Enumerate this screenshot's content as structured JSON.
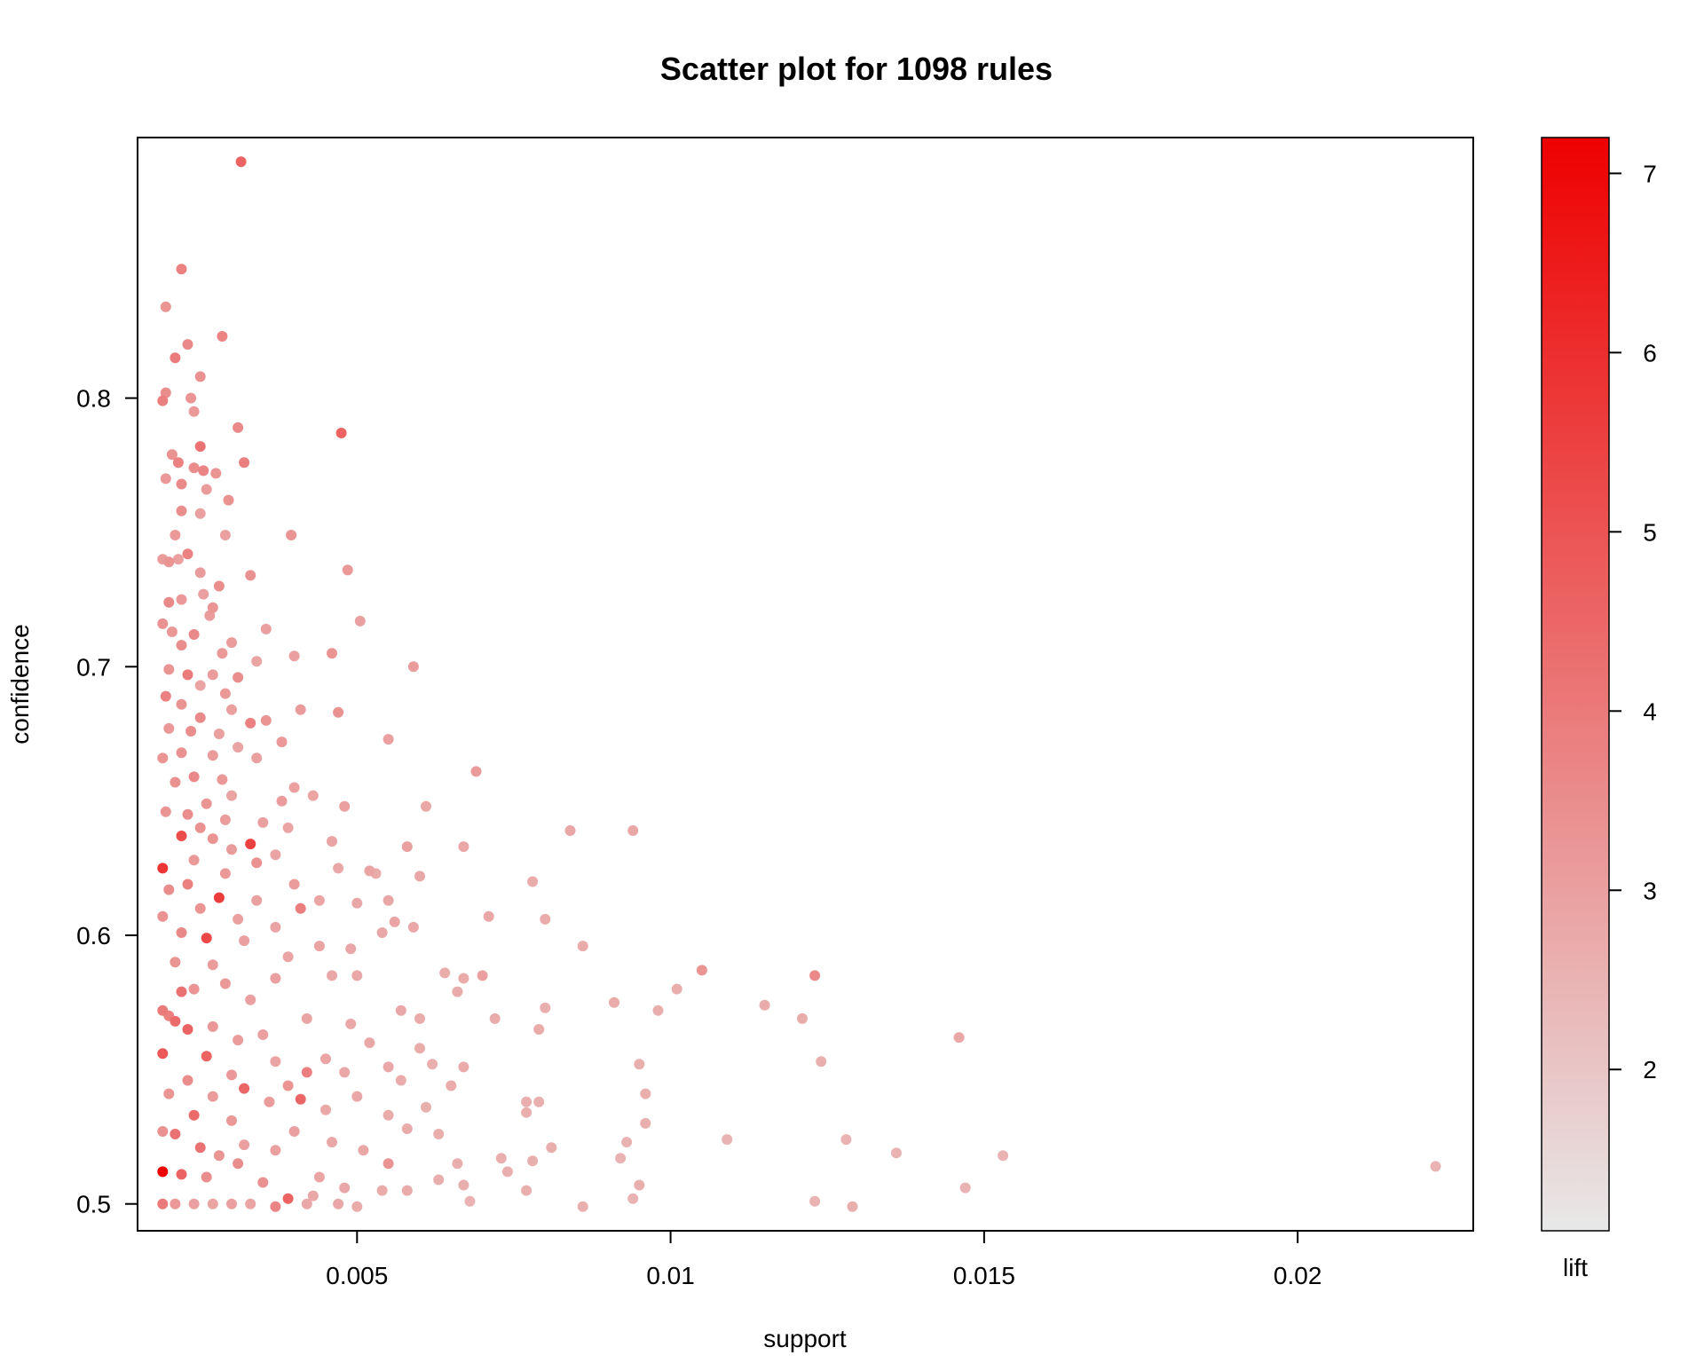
{
  "chart_data": {
    "type": "scatter",
    "title": "Scatter plot for 1098 rules",
    "xlabel": "support",
    "ylabel": "confidence",
    "xlim": [
      0.0015,
      0.0228
    ],
    "ylim": [
      0.49,
      0.897
    ],
    "x_ticks": [
      {
        "value": 0.005,
        "label": "0.005"
      },
      {
        "value": 0.01,
        "label": "0.01"
      },
      {
        "value": 0.015,
        "label": "0.015"
      },
      {
        "value": 0.02,
        "label": "0.02"
      }
    ],
    "y_ticks": [
      {
        "value": 0.5,
        "label": "0.5"
      },
      {
        "value": 0.6,
        "label": "0.6"
      },
      {
        "value": 0.7,
        "label": "0.7"
      },
      {
        "value": 0.8,
        "label": "0.8"
      }
    ],
    "colorbar": {
      "label": "lift",
      "range": [
        1.1,
        7.2
      ],
      "color_low": "#e8e8e8",
      "color_high": "#ee0000",
      "ticks": [
        {
          "value": 2,
          "label": "2"
        },
        {
          "value": 3,
          "label": "3"
        },
        {
          "value": 4,
          "label": "4"
        },
        {
          "value": 5,
          "label": "5"
        },
        {
          "value": 6,
          "label": "6"
        },
        {
          "value": 7,
          "label": "7"
        }
      ]
    },
    "grid": false,
    "points": [
      [
        0.00315,
        0.888,
        4.6
      ],
      [
        0.0022,
        0.848,
        3.8
      ],
      [
        0.00195,
        0.834,
        3.3
      ],
      [
        0.00285,
        0.823,
        3.7
      ],
      [
        0.0023,
        0.82,
        3.6
      ],
      [
        0.0021,
        0.815,
        4.0
      ],
      [
        0.0025,
        0.808,
        3.4
      ],
      [
        0.00195,
        0.802,
        3.5
      ],
      [
        0.0019,
        0.799,
        3.9
      ],
      [
        0.00235,
        0.8,
        3.3
      ],
      [
        0.0024,
        0.795,
        3.2
      ],
      [
        0.0031,
        0.789,
        3.6
      ],
      [
        0.00475,
        0.787,
        4.6
      ],
      [
        0.0025,
        0.782,
        4.2
      ],
      [
        0.00205,
        0.779,
        3.4
      ],
      [
        0.00215,
        0.776,
        3.8
      ],
      [
        0.0032,
        0.776,
        3.9
      ],
      [
        0.0024,
        0.774,
        3.5
      ],
      [
        0.00275,
        0.772,
        3.3
      ],
      [
        0.00195,
        0.77,
        3.2
      ],
      [
        0.00255,
        0.773,
        3.7
      ],
      [
        0.0022,
        0.768,
        3.6
      ],
      [
        0.0026,
        0.766,
        3.1
      ],
      [
        0.00295,
        0.762,
        3.4
      ],
      [
        0.0022,
        0.758,
        3.5
      ],
      [
        0.0025,
        0.757,
        3.0
      ],
      [
        0.0021,
        0.749,
        3.2
      ],
      [
        0.00395,
        0.749,
        3.3
      ],
      [
        0.0029,
        0.749,
        3.0
      ],
      [
        0.0023,
        0.742,
        3.8
      ],
      [
        0.0019,
        0.74,
        3.1
      ],
      [
        0.00215,
        0.74,
        3.0
      ],
      [
        0.002,
        0.739,
        3.3
      ],
      [
        0.00485,
        0.736,
        3.2
      ],
      [
        0.0033,
        0.734,
        3.4
      ],
      [
        0.0025,
        0.735,
        3.1
      ],
      [
        0.0028,
        0.73,
        3.5
      ],
      [
        0.00255,
        0.727,
        3.0
      ],
      [
        0.0022,
        0.725,
        3.2
      ],
      [
        0.002,
        0.724,
        3.6
      ],
      [
        0.0027,
        0.722,
        3.3
      ],
      [
        0.00265,
        0.719,
        3.1
      ],
      [
        0.00505,
        0.717,
        3.0
      ],
      [
        0.0019,
        0.716,
        3.4
      ],
      [
        0.00205,
        0.713,
        3.2
      ],
      [
        0.00355,
        0.714,
        3.0
      ],
      [
        0.0024,
        0.712,
        3.6
      ],
      [
        0.003,
        0.709,
        3.1
      ],
      [
        0.0022,
        0.708,
        3.5
      ],
      [
        0.00285,
        0.705,
        3.2
      ],
      [
        0.004,
        0.704,
        3.0
      ],
      [
        0.0046,
        0.705,
        3.3
      ],
      [
        0.0034,
        0.702,
        2.9
      ],
      [
        0.0059,
        0.7,
        3.1
      ],
      [
        0.002,
        0.699,
        3.3
      ],
      [
        0.0023,
        0.697,
        4.0
      ],
      [
        0.0027,
        0.697,
        3.1
      ],
      [
        0.0031,
        0.696,
        3.5
      ],
      [
        0.0025,
        0.693,
        2.9
      ],
      [
        0.0029,
        0.69,
        3.2
      ],
      [
        0.00195,
        0.689,
        3.8
      ],
      [
        0.0022,
        0.686,
        3.3
      ],
      [
        0.003,
        0.684,
        3.0
      ],
      [
        0.0041,
        0.684,
        3.1
      ],
      [
        0.0047,
        0.683,
        3.4
      ],
      [
        0.0025,
        0.681,
        3.6
      ],
      [
        0.00355,
        0.68,
        3.3
      ],
      [
        0.0033,
        0.679,
        3.8
      ],
      [
        0.002,
        0.677,
        3.2
      ],
      [
        0.00235,
        0.676,
        3.5
      ],
      [
        0.0028,
        0.675,
        3.0
      ],
      [
        0.0038,
        0.672,
        3.2
      ],
      [
        0.0055,
        0.673,
        3.0
      ],
      [
        0.0031,
        0.67,
        2.9
      ],
      [
        0.0022,
        0.668,
        3.4
      ],
      [
        0.0027,
        0.667,
        3.1
      ],
      [
        0.0019,
        0.666,
        3.3
      ],
      [
        0.0034,
        0.666,
        3.0
      ],
      [
        0.0069,
        0.661,
        3.1
      ],
      [
        0.0024,
        0.659,
        3.6
      ],
      [
        0.00285,
        0.658,
        3.2
      ],
      [
        0.0021,
        0.657,
        3.4
      ],
      [
        0.004,
        0.655,
        3.0
      ],
      [
        0.003,
        0.652,
        2.9
      ],
      [
        0.0043,
        0.652,
        2.9
      ],
      [
        0.0026,
        0.649,
        3.3
      ],
      [
        0.0038,
        0.65,
        3.1
      ],
      [
        0.00195,
        0.646,
        3.3
      ],
      [
        0.0023,
        0.645,
        3.5
      ],
      [
        0.0048,
        0.648,
        3.0
      ],
      [
        0.0061,
        0.648,
        2.8
      ],
      [
        0.0029,
        0.643,
        3.1
      ],
      [
        0.0035,
        0.642,
        3.0
      ],
      [
        0.0025,
        0.64,
        3.4
      ],
      [
        0.0039,
        0.64,
        2.9
      ],
      [
        0.0084,
        0.639,
        2.8
      ],
      [
        0.0094,
        0.639,
        2.8
      ],
      [
        0.0022,
        0.637,
        5.2
      ],
      [
        0.0033,
        0.634,
        5.5
      ],
      [
        0.0027,
        0.636,
        3.3
      ],
      [
        0.003,
        0.632,
        3.1
      ],
      [
        0.0046,
        0.635,
        2.9
      ],
      [
        0.0058,
        0.633,
        3.0
      ],
      [
        0.0067,
        0.633,
        2.8
      ],
      [
        0.0037,
        0.63,
        2.9
      ],
      [
        0.0024,
        0.628,
        3.2
      ],
      [
        0.0034,
        0.627,
        3.4
      ],
      [
        0.0019,
        0.625,
        5.8
      ],
      [
        0.0047,
        0.625,
        2.8
      ],
      [
        0.0052,
        0.624,
        2.9
      ],
      [
        0.0053,
        0.623,
        2.7
      ],
      [
        0.006,
        0.622,
        2.8
      ],
      [
        0.0029,
        0.623,
        3.2
      ],
      [
        0.0078,
        0.62,
        2.7
      ],
      [
        0.0023,
        0.619,
        3.8
      ],
      [
        0.004,
        0.619,
        3.1
      ],
      [
        0.002,
        0.617,
        3.5
      ],
      [
        0.0028,
        0.614,
        5.6
      ],
      [
        0.0034,
        0.613,
        3.0
      ],
      [
        0.0044,
        0.613,
        2.9
      ],
      [
        0.005,
        0.612,
        2.8
      ],
      [
        0.0055,
        0.613,
        2.8
      ],
      [
        0.0041,
        0.61,
        3.9
      ],
      [
        0.0025,
        0.61,
        3.3
      ],
      [
        0.0019,
        0.607,
        3.4
      ],
      [
        0.0031,
        0.606,
        3.0
      ],
      [
        0.0071,
        0.607,
        2.8
      ],
      [
        0.008,
        0.606,
        2.7
      ],
      [
        0.0056,
        0.605,
        2.9
      ],
      [
        0.0059,
        0.603,
        2.8
      ],
      [
        0.0037,
        0.603,
        2.9
      ],
      [
        0.0054,
        0.601,
        2.8
      ],
      [
        0.0022,
        0.601,
        3.6
      ],
      [
        0.0026,
        0.599,
        5.3
      ],
      [
        0.0032,
        0.598,
        3.0
      ],
      [
        0.0044,
        0.596,
        2.9
      ],
      [
        0.0049,
        0.595,
        2.8
      ],
      [
        0.0086,
        0.596,
        2.7
      ],
      [
        0.0039,
        0.592,
        2.9
      ],
      [
        0.0021,
        0.59,
        3.3
      ],
      [
        0.0027,
        0.589,
        3.1
      ],
      [
        0.0105,
        0.587,
        3.3
      ],
      [
        0.0064,
        0.586,
        2.7
      ],
      [
        0.0046,
        0.585,
        2.8
      ],
      [
        0.007,
        0.585,
        3.0
      ],
      [
        0.0123,
        0.585,
        3.6
      ],
      [
        0.0101,
        0.58,
        2.6
      ],
      [
        0.0037,
        0.584,
        3.0
      ],
      [
        0.005,
        0.585,
        2.8
      ],
      [
        0.0067,
        0.584,
        2.7
      ],
      [
        0.0029,
        0.582,
        3.2
      ],
      [
        0.0024,
        0.58,
        3.3
      ],
      [
        0.0022,
        0.579,
        4.2
      ],
      [
        0.0066,
        0.579,
        2.7
      ],
      [
        0.0033,
        0.576,
        3.0
      ],
      [
        0.0091,
        0.575,
        2.7
      ],
      [
        0.0115,
        0.574,
        2.7
      ],
      [
        0.008,
        0.573,
        2.6
      ],
      [
        0.0098,
        0.572,
        2.6
      ],
      [
        0.0019,
        0.572,
        4.0
      ],
      [
        0.002,
        0.57,
        3.8
      ],
      [
        0.0021,
        0.568,
        4.4
      ],
      [
        0.0057,
        0.572,
        2.8
      ],
      [
        0.006,
        0.569,
        2.7
      ],
      [
        0.0072,
        0.569,
        2.7
      ],
      [
        0.0121,
        0.569,
        2.7
      ],
      [
        0.0042,
        0.569,
        2.9
      ],
      [
        0.0027,
        0.566,
        3.2
      ],
      [
        0.0049,
        0.567,
        2.8
      ],
      [
        0.0079,
        0.565,
        2.7
      ],
      [
        0.0023,
        0.565,
        4.6
      ],
      [
        0.0035,
        0.563,
        3.0
      ],
      [
        0.0146,
        0.562,
        2.8
      ],
      [
        0.0031,
        0.561,
        3.1
      ],
      [
        0.0052,
        0.56,
        2.8
      ],
      [
        0.006,
        0.558,
        2.7
      ],
      [
        0.0019,
        0.556,
        4.9
      ],
      [
        0.0026,
        0.555,
        4.6
      ],
      [
        0.0045,
        0.554,
        2.9
      ],
      [
        0.0062,
        0.552,
        2.6
      ],
      [
        0.0095,
        0.552,
        2.6
      ],
      [
        0.0124,
        0.553,
        2.6
      ],
      [
        0.0037,
        0.553,
        2.9
      ],
      [
        0.0055,
        0.551,
        2.8
      ],
      [
        0.0067,
        0.551,
        2.7
      ],
      [
        0.0042,
        0.549,
        3.9
      ],
      [
        0.0048,
        0.549,
        2.8
      ],
      [
        0.003,
        0.548,
        3.2
      ],
      [
        0.0023,
        0.546,
        3.5
      ],
      [
        0.0057,
        0.546,
        2.7
      ],
      [
        0.0039,
        0.544,
        3.3
      ],
      [
        0.0032,
        0.543,
        4.5
      ],
      [
        0.002,
        0.541,
        3.3
      ],
      [
        0.0065,
        0.544,
        2.7
      ],
      [
        0.0096,
        0.541,
        2.6
      ],
      [
        0.0027,
        0.54,
        3.1
      ],
      [
        0.005,
        0.54,
        2.8
      ],
      [
        0.0041,
        0.539,
        4.5
      ],
      [
        0.0036,
        0.538,
        3.1
      ],
      [
        0.0077,
        0.538,
        2.6
      ],
      [
        0.0079,
        0.538,
        2.6
      ],
      [
        0.0061,
        0.536,
        2.6
      ],
      [
        0.0045,
        0.535,
        2.8
      ],
      [
        0.0024,
        0.533,
        4.4
      ],
      [
        0.0055,
        0.533,
        2.7
      ],
      [
        0.0077,
        0.534,
        2.6
      ],
      [
        0.003,
        0.531,
        3.2
      ],
      [
        0.0096,
        0.53,
        2.6
      ],
      [
        0.0058,
        0.528,
        2.7
      ],
      [
        0.004,
        0.527,
        3.0
      ],
      [
        0.0019,
        0.527,
        3.4
      ],
      [
        0.0021,
        0.526,
        4.2
      ],
      [
        0.0063,
        0.526,
        2.6
      ],
      [
        0.0109,
        0.524,
        2.5
      ],
      [
        0.0128,
        0.524,
        2.5
      ],
      [
        0.0046,
        0.523,
        2.8
      ],
      [
        0.0093,
        0.523,
        2.5
      ],
      [
        0.0032,
        0.522,
        3.0
      ],
      [
        0.0025,
        0.521,
        4.2
      ],
      [
        0.0081,
        0.521,
        2.6
      ],
      [
        0.0051,
        0.52,
        2.8
      ],
      [
        0.0037,
        0.52,
        3.0
      ],
      [
        0.0028,
        0.518,
        3.3
      ],
      [
        0.0136,
        0.519,
        2.5
      ],
      [
        0.0153,
        0.518,
        2.5
      ],
      [
        0.0073,
        0.517,
        2.6
      ],
      [
        0.0092,
        0.517,
        2.5
      ],
      [
        0.0078,
        0.516,
        2.6
      ],
      [
        0.0066,
        0.515,
        2.6
      ],
      [
        0.0055,
        0.515,
        3.3
      ],
      [
        0.0031,
        0.515,
        3.5
      ],
      [
        0.0222,
        0.514,
        2.5
      ],
      [
        0.0019,
        0.512,
        7.2
      ],
      [
        0.0022,
        0.511,
        4.6
      ],
      [
        0.0026,
        0.51,
        3.5
      ],
      [
        0.0044,
        0.51,
        2.9
      ],
      [
        0.0063,
        0.509,
        2.6
      ],
      [
        0.0035,
        0.508,
        3.4
      ],
      [
        0.0074,
        0.512,
        2.6
      ],
      [
        0.0048,
        0.506,
        2.8
      ],
      [
        0.0054,
        0.505,
        2.7
      ],
      [
        0.0067,
        0.507,
        2.6
      ],
      [
        0.0077,
        0.505,
        2.6
      ],
      [
        0.0095,
        0.507,
        2.6
      ],
      [
        0.0147,
        0.506,
        2.5
      ],
      [
        0.0039,
        0.502,
        4.6
      ],
      [
        0.0068,
        0.501,
        2.5
      ],
      [
        0.0094,
        0.502,
        2.5
      ],
      [
        0.0123,
        0.501,
        2.5
      ],
      [
        0.0019,
        0.5,
        4.0
      ],
      [
        0.0021,
        0.5,
        3.2
      ],
      [
        0.0024,
        0.5,
        3.0
      ],
      [
        0.0027,
        0.5,
        2.9
      ],
      [
        0.003,
        0.5,
        3.0
      ],
      [
        0.0033,
        0.5,
        2.9
      ],
      [
        0.0037,
        0.499,
        3.7
      ],
      [
        0.0042,
        0.5,
        2.8
      ],
      [
        0.0047,
        0.5,
        2.8
      ],
      [
        0.005,
        0.499,
        2.7
      ],
      [
        0.0086,
        0.499,
        2.6
      ],
      [
        0.0129,
        0.499,
        2.6
      ],
      [
        0.0058,
        0.505,
        2.7
      ],
      [
        0.0043,
        0.503,
        2.8
      ]
    ]
  }
}
